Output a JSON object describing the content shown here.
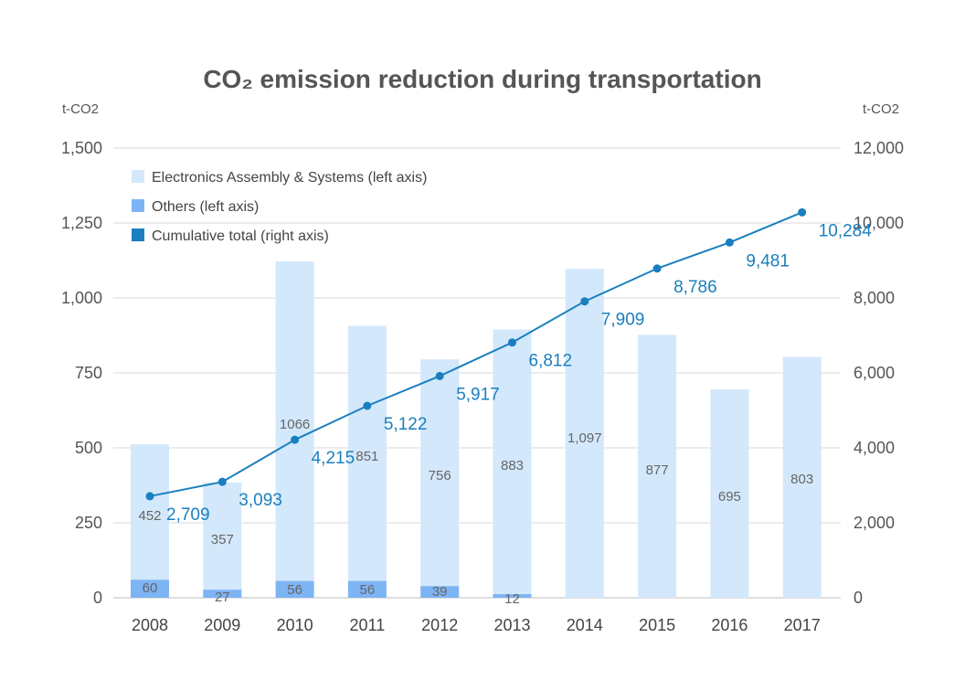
{
  "chart_data": {
    "type": "bar",
    "title": "CO₂ emission reduction during transportation",
    "y_left_label": "t-CO2",
    "y_right_label": "t-CO2",
    "categories": [
      "2008",
      "2009",
      "2010",
      "2011",
      "2012",
      "2013",
      "2014",
      "2015",
      "2016",
      "2017"
    ],
    "y_left_ticks": [
      "0",
      "250",
      "500",
      "750",
      "1,000",
      "1,250",
      "1,500"
    ],
    "y_left_range": [
      0,
      1500
    ],
    "y_right_ticks": [
      "0",
      "2,000",
      "4,000",
      "6,000",
      "8,000",
      "10,000",
      "12,000"
    ],
    "y_right_range": [
      0,
      12000
    ],
    "grid": true,
    "legend_position": "top-left",
    "series": [
      {
        "name": "Electronics Assembly & Systems (left axis)",
        "type": "bar",
        "axis": "left",
        "color": "#d3e8fb",
        "values": [
          452,
          357,
          1066,
          851,
          756,
          883,
          1097,
          877,
          695,
          803
        ],
        "labels": [
          "452",
          "357",
          "1066",
          "851",
          "756",
          "883",
          "1,097",
          "877",
          "695",
          "803"
        ]
      },
      {
        "name": "Others (left axis)",
        "type": "bar",
        "axis": "left",
        "color": "#7db4f3",
        "values": [
          60,
          27,
          56,
          56,
          39,
          12,
          0,
          0,
          0,
          0
        ],
        "labels": [
          "60",
          "27",
          "56",
          "56",
          "39",
          "12",
          "",
          "",
          "",
          ""
        ]
      },
      {
        "name": "Cumulative total (right axis)",
        "type": "line",
        "axis": "right",
        "color": "#1a7fbf",
        "values": [
          2709,
          3093,
          4215,
          5122,
          5917,
          6812,
          7909,
          8786,
          9481,
          10284
        ],
        "labels": [
          "2,709",
          "3,093",
          "4,215",
          "5,122",
          "5,917",
          "6,812",
          "7,909",
          "8,786",
          "9,481",
          "10,284"
        ]
      }
    ]
  }
}
